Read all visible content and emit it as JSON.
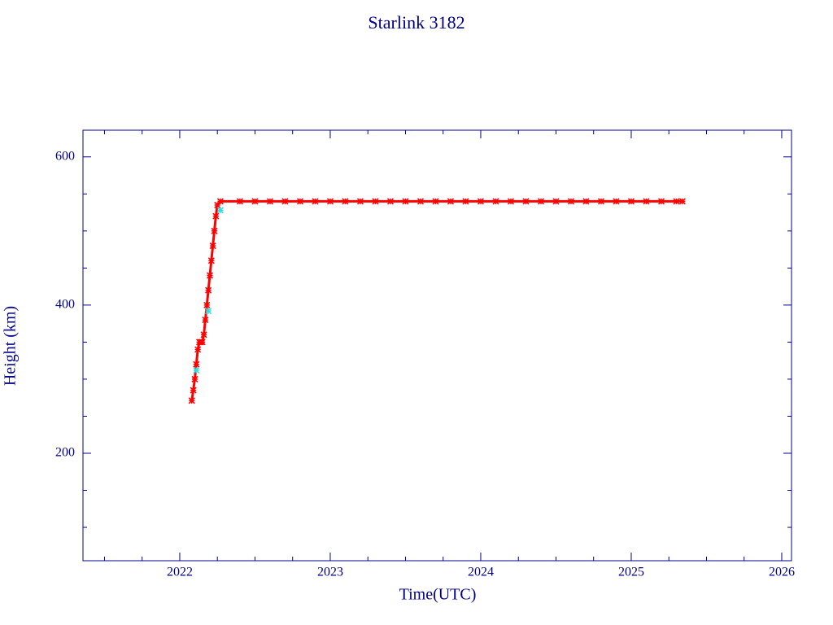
{
  "chart_data": {
    "type": "line",
    "title": "Starlink 3182",
    "x_label": "Time(UTC)",
    "y_label": "Height (km)",
    "xlim": [
      2021.357,
      2026.065
    ],
    "xticks": [
      2022,
      2023,
      2024,
      2025,
      2026
    ],
    "xminorticks": [
      2021.5,
      2021.75,
      2022.25,
      2022.5,
      2022.75,
      2023.25,
      2023.5,
      2023.75,
      2024.25,
      2024.5,
      2024.75,
      2025.25,
      2025.5,
      2025.75
    ],
    "ylim": [
      55,
      636
    ],
    "yticks": [
      200,
      400,
      600
    ],
    "yminorticks": [
      100,
      150,
      250,
      300,
      350,
      450,
      500,
      550
    ],
    "series": [
      {
        "color": "#ff0000",
        "x": [
          2022.08,
          2022.09,
          2022.1,
          2022.11,
          2022.12,
          2022.13,
          2022.14,
          2022.15,
          2022.16,
          2022.17,
          2022.18,
          2022.19,
          2022.2,
          2022.21,
          2022.22,
          2022.23,
          2022.24,
          2022.25,
          2022.27,
          2022.4,
          2022.5,
          2022.6,
          2022.7,
          2022.8,
          2022.9,
          2023.0,
          2023.1,
          2023.2,
          2023.3,
          2023.4,
          2023.5,
          2023.6,
          2023.7,
          2023.8,
          2023.9,
          2024.0,
          2024.1,
          2024.2,
          2024.3,
          2024.4,
          2024.5,
          2024.6,
          2024.7,
          2024.8,
          2024.9,
          2025.0,
          2025.1,
          2025.2,
          2025.3,
          2025.34
        ],
        "values": [
          271,
          285,
          300,
          320,
          340,
          350,
          350,
          350,
          360,
          380,
          400,
          420,
          440,
          460,
          480,
          500,
          520,
          535,
          540,
          540,
          540,
          540,
          540,
          540,
          540,
          540,
          540,
          540,
          540,
          540,
          540,
          540,
          540,
          540,
          540,
          540,
          540,
          540,
          540,
          540,
          540,
          540,
          540,
          540,
          540,
          540,
          540,
          540,
          540,
          540
        ]
      },
      {
        "color": "#33dddd",
        "x": [
          2022.11,
          2022.19,
          2022.27
        ],
        "values": [
          312,
          392,
          528
        ]
      }
    ]
  }
}
